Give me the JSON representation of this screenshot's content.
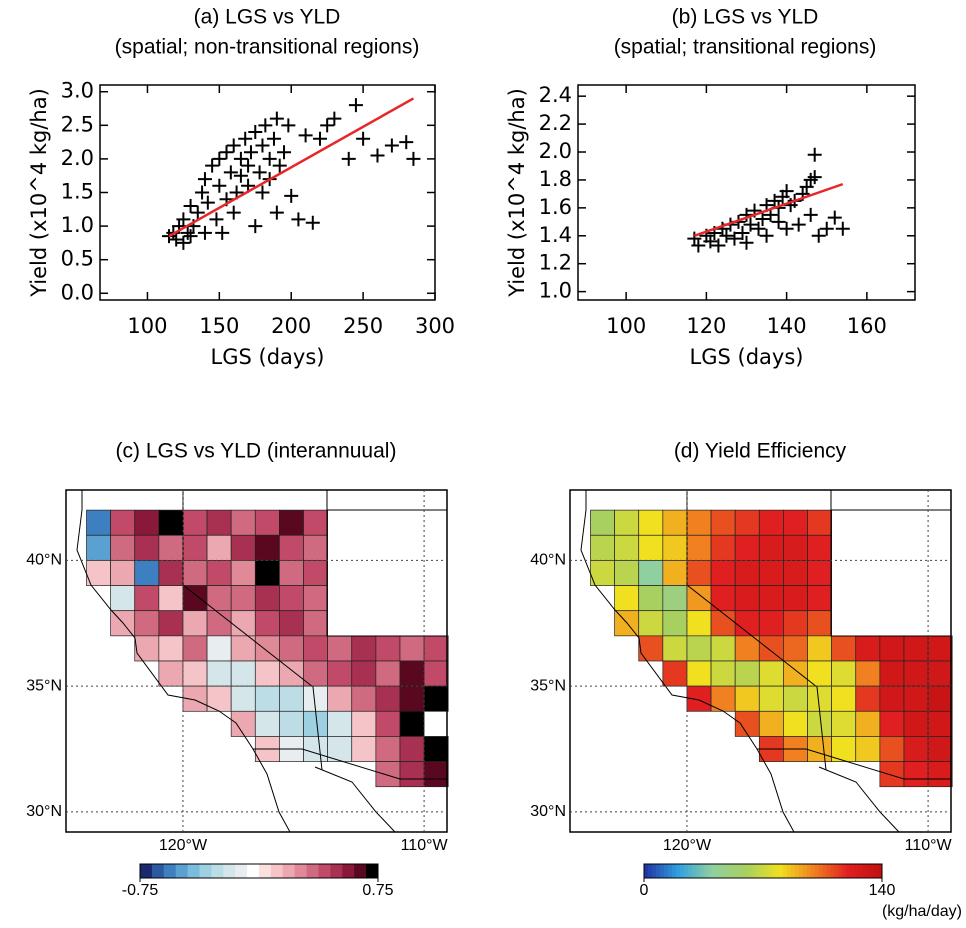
{
  "chart_data": [
    {
      "type": "scatter",
      "title": "(a) LGS vs YLD",
      "subtitle": "(spatial; non-transitional regions)",
      "x_label": "LGS (days)",
      "y_label": "Yield (x10^4 kg/ha)",
      "color": "#000000",
      "x": [
        115,
        118,
        120,
        122,
        125,
        125,
        128,
        130,
        130,
        132,
        135,
        138,
        140,
        140,
        142,
        145,
        148,
        150,
        150,
        152,
        155,
        155,
        158,
        160,
        160,
        162,
        165,
        165,
        168,
        170,
        170,
        172,
        175,
        175,
        178,
        180,
        180,
        182,
        185,
        185,
        188,
        190,
        190,
        192,
        195,
        198,
        200,
        205,
        210,
        215,
        220,
        225,
        230,
        240,
        245,
        250,
        260,
        270,
        280,
        285
      ],
      "values": [
        0.85,
        0.9,
        0.8,
        1.0,
        0.75,
        1.1,
        0.9,
        1.3,
        0.85,
        1.0,
        1.2,
        1.5,
        0.9,
        1.7,
        1.35,
        1.9,
        1.1,
        2.0,
        1.6,
        0.9,
        2.1,
        1.4,
        1.8,
        2.2,
        1.2,
        1.5,
        2.0,
        1.75,
        2.3,
        1.6,
        1.9,
        2.1,
        2.4,
        1.0,
        1.8,
        2.2,
        1.5,
        2.5,
        1.7,
        2.0,
        2.3,
        1.2,
        2.6,
        1.9,
        2.1,
        2.5,
        1.45,
        1.1,
        2.35,
        1.05,
        2.3,
        2.5,
        2.6,
        2.0,
        2.8,
        2.3,
        2.05,
        2.2,
        2.25,
        2.0
      ],
      "fit": {
        "x": [
          115,
          285
        ],
        "values": [
          0.85,
          2.9
        ],
        "color": "#e8262a"
      },
      "xlim": [
        67,
        300
      ],
      "ylim": [
        -0.1,
        3.1
      ],
      "xticks": [
        100,
        150,
        200,
        250,
        300
      ],
      "yticks": [
        {
          "value": 0,
          "label": "0.0"
        },
        0.5,
        {
          "value": 1,
          "label": "1.0"
        },
        1.5,
        {
          "value": 2,
          "label": "2.0"
        },
        2.5,
        {
          "value": 3,
          "label": "3.0"
        }
      ]
    },
    {
      "type": "scatter",
      "title": "(b) LGS vs YLD",
      "subtitle": "(spatial; transitional regions)",
      "x_label": "LGS (days)",
      "y_label": "Yield (x10^4 kg/ha)",
      "color": "#000000",
      "x": [
        117,
        118,
        120,
        121,
        122,
        123,
        124,
        125,
        126,
        127,
        128,
        129,
        130,
        130,
        131,
        132,
        133,
        134,
        135,
        135,
        136,
        137,
        138,
        138,
        139,
        140,
        140,
        141,
        142,
        143,
        144,
        145,
        146,
        146,
        147,
        147,
        148,
        150,
        152,
        154
      ],
      "values": [
        1.38,
        1.33,
        1.4,
        1.36,
        1.42,
        1.33,
        1.45,
        1.4,
        1.48,
        1.38,
        1.5,
        1.42,
        1.55,
        1.35,
        1.48,
        1.58,
        1.45,
        1.52,
        1.62,
        1.4,
        1.55,
        1.65,
        1.5,
        1.6,
        1.68,
        1.45,
        1.72,
        1.62,
        1.65,
        1.48,
        1.7,
        1.75,
        1.8,
        1.55,
        1.98,
        1.82,
        1.4,
        1.45,
        1.53,
        1.45
      ],
      "fit": {
        "x": [
          117,
          154
        ],
        "values": [
          1.4,
          1.77
        ],
        "color": "#e8262a"
      },
      "xlim": [
        88,
        172
      ],
      "ylim": [
        0.94,
        2.48
      ],
      "xticks": [
        100,
        120,
        140,
        160
      ],
      "yticks": [
        {
          "value": 1,
          "label": "1.0"
        },
        1.2,
        1.4,
        1.6,
        1.8,
        {
          "value": 2,
          "label": "2.0"
        },
        2.2,
        2.4
      ]
    },
    {
      "type": "grid-map",
      "title": "(c) LGS vs YLD (interannuual)",
      "lons": [
        -124.5,
        -123.5,
        -122.5,
        -121.5,
        -120.5,
        -119.5,
        -118.5,
        -117.5,
        -116.5,
        -115.5,
        -114.5,
        -113.5,
        -112.5,
        -111.5,
        -110.5,
        -109.5
      ],
      "lats": [
        41.5,
        40.5,
        39.5,
        38.5,
        37.5,
        36.5,
        35.5,
        34.5,
        33.5,
        32.5,
        31.5
      ],
      "values": [
        [
          null,
          -0.6,
          0.4,
          0.55,
          0.7,
          0.4,
          0.5,
          0.35,
          0.45,
          0.6,
          0.4,
          null,
          null,
          null,
          null,
          null
        ],
        [
          null,
          -0.5,
          0.3,
          0.5,
          0.3,
          0.45,
          0.2,
          0.5,
          0.6,
          0.4,
          0.35,
          null,
          null,
          null,
          null,
          null
        ],
        [
          null,
          0.1,
          0.2,
          -0.6,
          0.5,
          0.3,
          0.4,
          0.25,
          0.7,
          0.3,
          0.45,
          null,
          null,
          null,
          null,
          null
        ],
        [
          null,
          null,
          -0.2,
          0.4,
          0.1,
          0.6,
          0.35,
          0.3,
          0.5,
          0.4,
          0.3,
          null,
          null,
          null,
          null,
          null
        ],
        [
          null,
          null,
          0.2,
          0.3,
          0.5,
          0.2,
          0.3,
          0.15,
          0.4,
          0.5,
          0.35,
          null,
          null,
          null,
          null,
          null
        ],
        [
          null,
          null,
          null,
          0.2,
          0.1,
          0.3,
          -0.1,
          0.2,
          0.25,
          0.3,
          0.4,
          0.35,
          0.5,
          0.4,
          0.3,
          0.45
        ],
        [
          null,
          null,
          null,
          null,
          0.15,
          0.1,
          -0.15,
          -0.2,
          0.1,
          0.2,
          0.3,
          0.4,
          0.5,
          0.35,
          0.6,
          0.4
        ],
        [
          null,
          null,
          null,
          null,
          null,
          0.2,
          0.1,
          -0.2,
          -0.25,
          -0.3,
          -0.1,
          0.2,
          0.3,
          0.5,
          0.65,
          0.7
        ],
        [
          null,
          null,
          null,
          null,
          null,
          null,
          null,
          0.15,
          -0.2,
          -0.3,
          -0.35,
          -0.2,
          0.1,
          0.4,
          0.7,
          null
        ],
        [
          null,
          null,
          null,
          null,
          null,
          null,
          null,
          null,
          0.1,
          -0.1,
          -0.2,
          -0.15,
          0.1,
          0.3,
          0.5,
          0.75
        ],
        [
          null,
          null,
          null,
          null,
          null,
          null,
          null,
          null,
          null,
          null,
          null,
          null,
          null,
          0.3,
          0.5,
          0.6
        ]
      ],
      "xlim": [
        -124.85,
        -109.05
      ],
      "ylim": [
        29.2,
        42.8
      ],
      "xticks": [
        {
          "value": -120,
          "label": "120°W"
        },
        {
          "value": -110,
          "label": "110°W"
        }
      ],
      "yticks": [
        {
          "value": 30,
          "label": "30°N"
        },
        {
          "value": 35,
          "label": "35°N"
        },
        {
          "value": 40,
          "label": "40°N"
        }
      ],
      "colorbar": {
        "range": [
          -0.75,
          0.75
        ],
        "discrete": true,
        "ticks": [
          -0.75,
          0.75
        ],
        "colors": [
          "#1a2a6c",
          "#2c5aa0",
          "#3d7fc0",
          "#5aa0d0",
          "#7bbcdc",
          "#9dd0e0",
          "#bcdde6",
          "#d5e6ea",
          "#e8eef0",
          "#ffffff",
          "#fbe0e0",
          "#f4c4c8",
          "#eca8b0",
          "#e08a98",
          "#d06a80",
          "#c04a68",
          "#a83050",
          "#8a1838",
          "#5a0820",
          "#000000"
        ]
      }
    },
    {
      "type": "grid-map",
      "title": "(d) Yield Efficiency",
      "lons": [
        -124.5,
        -123.5,
        -122.5,
        -121.5,
        -120.5,
        -119.5,
        -118.5,
        -117.5,
        -116.5,
        -115.5,
        -114.5,
        -113.5,
        -112.5,
        -111.5,
        -110.5,
        -109.5
      ],
      "lats": [
        41.5,
        40.5,
        39.5,
        38.5,
        37.5,
        36.5,
        35.5,
        34.5,
        33.5,
        32.5,
        31.5
      ],
      "values": [
        [
          null,
          60,
          70,
          80,
          90,
          100,
          110,
          115,
          120,
          120,
          115,
          null,
          null,
          null,
          null,
          null
        ],
        [
          null,
          65,
          70,
          80,
          85,
          100,
          115,
          120,
          125,
          125,
          120,
          null,
          null,
          null,
          null,
          null
        ],
        [
          null,
          70,
          65,
          40,
          90,
          110,
          120,
          125,
          125,
          125,
          120,
          null,
          null,
          null,
          null,
          null
        ],
        [
          null,
          null,
          80,
          60,
          50,
          95,
          120,
          125,
          125,
          125,
          120,
          null,
          null,
          null,
          null,
          null
        ],
        [
          null,
          null,
          90,
          70,
          60,
          80,
          110,
          120,
          120,
          115,
          110,
          null,
          null,
          null,
          null,
          null
        ],
        [
          null,
          null,
          null,
          110,
          70,
          65,
          70,
          100,
          110,
          105,
          85,
          110,
          125,
          130,
          130,
          130
        ],
        [
          null,
          null,
          null,
          null,
          115,
          80,
          70,
          65,
          75,
          90,
          80,
          75,
          100,
          130,
          130,
          130
        ],
        [
          null,
          null,
          null,
          null,
          null,
          120,
          100,
          85,
          75,
          70,
          75,
          80,
          115,
          130,
          130,
          135
        ],
        [
          null,
          null,
          null,
          null,
          null,
          null,
          null,
          110,
          90,
          80,
          70,
          75,
          90,
          120,
          130,
          130
        ],
        [
          null,
          null,
          null,
          null,
          null,
          null,
          null,
          null,
          115,
          100,
          90,
          80,
          85,
          110,
          125,
          130
        ],
        [
          null,
          null,
          null,
          null,
          null,
          null,
          null,
          null,
          null,
          null,
          null,
          null,
          null,
          115,
          120,
          125
        ]
      ],
      "xlim": [
        -124.85,
        -109.05
      ],
      "ylim": [
        29.2,
        42.8
      ],
      "xticks": [
        {
          "value": -120,
          "label": "120°W"
        },
        {
          "value": -110,
          "label": "110°W"
        }
      ],
      "yticks": [
        {
          "value": 30,
          "label": "30°N"
        },
        {
          "value": 35,
          "label": "35°N"
        },
        {
          "value": 40,
          "label": "40°N"
        }
      ],
      "colorbar": {
        "range": [
          0,
          140
        ],
        "discrete": false,
        "ticks": [
          0,
          140
        ],
        "label": "(kg/ha/day)",
        "colors": [
          "#2030a0",
          "#30a0e0",
          "#90d0a0",
          "#a8d060",
          "#f0e020",
          "#f08020",
          "#e02020",
          "#c01010"
        ]
      }
    }
  ]
}
